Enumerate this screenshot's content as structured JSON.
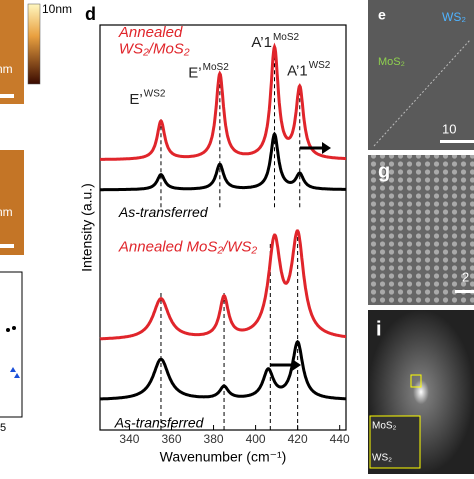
{
  "chart_data": {
    "type": "spectra",
    "panel_label": "d",
    "xlabel": "Wavenumber (cm⁻¹)",
    "ylabel": "Intensity (a.u.)",
    "xlim": [
      326,
      443
    ],
    "xticks": [
      340,
      360,
      380,
      400,
      420,
      440
    ],
    "ylim": [
      0,
      10
    ],
    "series": [
      {
        "color": "#e0252b",
        "baseline": 6.67,
        "peaks": [
          {
            "position": 355,
            "height": 0.94,
            "width": 2.2
          },
          {
            "position": 383,
            "height": 2.1,
            "width": 2.2
          },
          {
            "position": 409,
            "height": 2.72,
            "width": 2.2
          },
          {
            "position": 421,
            "height": 1.73,
            "width": 2.2
          }
        ]
      },
      {
        "color": "#000000",
        "baseline": 5.93,
        "peaks": [
          {
            "position": 355,
            "height": 0.37,
            "width": 2.2
          },
          {
            "position": 383,
            "height": 0.62,
            "width": 2.2
          },
          {
            "position": 409,
            "height": 1.36,
            "width": 2.2
          },
          {
            "position": 421,
            "height": 0.37,
            "width": 2.2
          }
        ]
      },
      {
        "color": "#e0252b",
        "baseline": 2.22,
        "peaks": [
          {
            "position": 355,
            "height": 1.0,
            "width": 4.5
          },
          {
            "position": 385,
            "height": 1.0,
            "width": 2.5
          },
          {
            "position": 409,
            "height": 2.35,
            "width": 3.5
          },
          {
            "position": 420,
            "height": 2.47,
            "width": 3.5
          }
        ]
      },
      {
        "color": "#000000",
        "baseline": 0.74,
        "peaks": [
          {
            "position": 355,
            "height": 1.0,
            "width": 4.5
          },
          {
            "position": 385,
            "height": 0.3,
            "width": 2.5
          },
          {
            "position": 406,
            "height": 0.7,
            "width": 3.0
          },
          {
            "position": 420,
            "height": 1.4,
            "width": 3.0
          }
        ]
      }
    ],
    "dashed_lines": [
      {
        "x": 355,
        "ylim": [
          5.5,
          7.7
        ]
      },
      {
        "x": 383,
        "ylim": [
          5.5,
          8.8
        ]
      },
      {
        "x": 409,
        "ylim": [
          5.5,
          9.4
        ]
      },
      {
        "x": 421,
        "ylim": [
          5.5,
          8.4
        ]
      },
      {
        "x": 355,
        "ylim": [
          0,
          3.4
        ]
      },
      {
        "x": 385,
        "ylim": [
          0,
          3.4
        ]
      },
      {
        "x": 407,
        "ylim": [
          0,
          4.6
        ]
      },
      {
        "x": 420,
        "ylim": [
          0,
          4.8
        ]
      }
    ],
    "annotations": [
      {
        "text": "Annealed",
        "x": 335,
        "y": 9.8,
        "color": "#e0252b",
        "italic": true,
        "size": 15
      },
      {
        "text": "WS₂/MoS₂",
        "x": 335,
        "y": 9.4,
        "color": "#e0252b",
        "italic": true,
        "size": 15
      },
      {
        "text": "As-transferred",
        "x": 335,
        "y": 5.35,
        "color": "#000000",
        "italic": true,
        "size": 14
      },
      {
        "text": "Annealed MoS₂/WS₂",
        "x": 335,
        "y": 4.5,
        "color": "#e0252b",
        "italic": true,
        "size": 15
      },
      {
        "text": "As-transferred",
        "x": 333,
        "y": 0.15,
        "color": "#000000",
        "italic": true,
        "size": 14
      }
    ],
    "peak_labels": [
      {
        "text": "E’",
        "sup": "WS2",
        "x": 340,
        "y": 8.15
      },
      {
        "text": "E’",
        "sup": "MoS2",
        "x": 368,
        "y": 8.8
      },
      {
        "text": "A’1",
        "sup": "MoS2",
        "x": 398,
        "y": 9.55
      },
      {
        "text": "A’1",
        "sup": "WS2",
        "x": 415,
        "y": 8.85
      }
    ]
  },
  "other_panels": {
    "colorbar_label": "10nm",
    "scale_top": "nm",
    "scale_mid": "nm",
    "bottom_tick": "5",
    "e_label": "e",
    "e_ws2": "WS₂",
    "e_mos2": "MoS₂",
    "e_scale": "10",
    "g_label": "g",
    "g_scale": "2",
    "i_label": "i",
    "i_mos2": "MoS₂",
    "i_ws2": "WS₂"
  }
}
